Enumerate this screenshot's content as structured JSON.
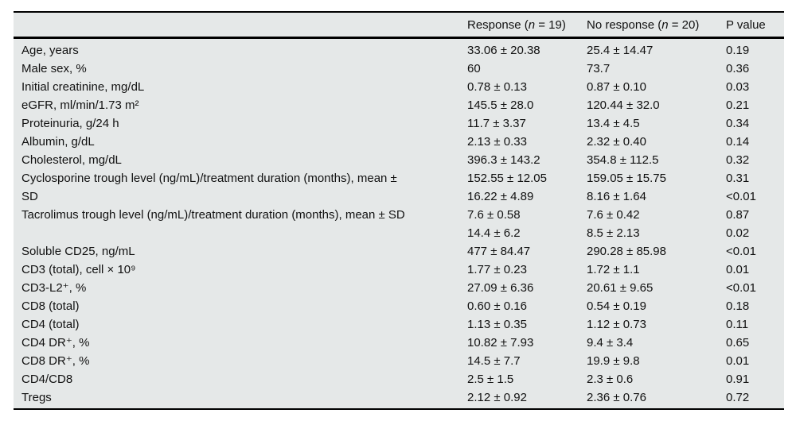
{
  "table": {
    "columns": {
      "row_header": "",
      "response": {
        "pre": "Response (",
        "n": "n",
        "post": " = 19)"
      },
      "no_response": {
        "pre": "No response (",
        "n": "n",
        "post": " = 20)"
      },
      "p_value": "P value"
    },
    "rows": [
      {
        "label": [
          "Age, years"
        ],
        "response": [
          "33.06 ± 20.38"
        ],
        "no_response": [
          "25.4 ± 14.47"
        ],
        "p": [
          "0.19"
        ]
      },
      {
        "label": [
          "Male sex, %"
        ],
        "response": [
          "60"
        ],
        "no_response": [
          "73.7"
        ],
        "p": [
          "0.36"
        ]
      },
      {
        "label": [
          "Initial creatinine, mg/dL"
        ],
        "response": [
          "0.78 ± 0.13"
        ],
        "no_response": [
          "0.87 ± 0.10"
        ],
        "p": [
          "0.03"
        ]
      },
      {
        "label": [
          "eGFR, ml/min/1.73 m²"
        ],
        "response": [
          "145.5 ± 28.0"
        ],
        "no_response": [
          "120.44 ± 32.0"
        ],
        "p": [
          "0.21"
        ]
      },
      {
        "label": [
          "Proteinuria, g/24 h"
        ],
        "response": [
          "11.7 ± 3.37"
        ],
        "no_response": [
          "13.4 ± 4.5"
        ],
        "p": [
          "0.34"
        ]
      },
      {
        "label": [
          "Albumin, g/dL"
        ],
        "response": [
          "2.13 ± 0.33"
        ],
        "no_response": [
          "2.32 ± 0.40"
        ],
        "p": [
          "0.14"
        ]
      },
      {
        "label": [
          "Cholesterol, mg/dL"
        ],
        "response": [
          "396.3 ± 143.2"
        ],
        "no_response": [
          "354.8 ± 112.5"
        ],
        "p": [
          "0.32"
        ]
      },
      {
        "label": [
          "Cyclosporine trough level (ng/mL)/treatment duration (months), mean ±",
          "SD"
        ],
        "response": [
          "152.55 ± 12.05",
          "16.22 ± 4.89"
        ],
        "no_response": [
          "159.05 ± 15.75",
          "8.16 ± 1.64"
        ],
        "p": [
          "0.31",
          "<0.01"
        ]
      },
      {
        "label": [
          "Tacrolimus trough level (ng/mL)/treatment duration (months), mean ± SD"
        ],
        "response": [
          "7.6 ± 0.58",
          "14.4 ± 6.2"
        ],
        "no_response": [
          "7.6 ± 0.42",
          "8.5 ± 2.13"
        ],
        "p": [
          "0.87",
          "0.02"
        ]
      },
      {
        "label": [
          "Soluble CD25, ng/mL"
        ],
        "response": [
          "477 ± 84.47"
        ],
        "no_response": [
          "290.28 ± 85.98"
        ],
        "p": [
          "<0.01"
        ]
      },
      {
        "label": [
          "CD3 (total), cell × 10⁹"
        ],
        "response": [
          "1.77 ± 0.23"
        ],
        "no_response": [
          "1.72 ± 1.1"
        ],
        "p": [
          "0.01"
        ]
      },
      {
        "label": [
          "CD3-L2⁺, %"
        ],
        "response": [
          "27.09 ± 6.36"
        ],
        "no_response": [
          "20.61 ± 9.65"
        ],
        "p": [
          "<0.01"
        ]
      },
      {
        "label": [
          "CD8 (total)"
        ],
        "response": [
          "0.60 ± 0.16"
        ],
        "no_response": [
          "0.54 ± 0.19"
        ],
        "p": [
          "0.18"
        ]
      },
      {
        "label": [
          "CD4 (total)"
        ],
        "response": [
          "1.13 ± 0.35"
        ],
        "no_response": [
          "1.12 ± 0.73"
        ],
        "p": [
          "0.11"
        ]
      },
      {
        "label": [
          "CD4 DR⁺, %"
        ],
        "response": [
          "10.82 ± 7.93"
        ],
        "no_response": [
          "9.4 ± 3.4"
        ],
        "p": [
          "0.65"
        ]
      },
      {
        "label": [
          "CD8 DR⁺, %"
        ],
        "response": [
          "14.5 ± 7.7"
        ],
        "no_response": [
          "19.9 ± 9.8"
        ],
        "p": [
          "0.01"
        ]
      },
      {
        "label": [
          "CD4/CD8"
        ],
        "response": [
          "2.5 ± 1.5"
        ],
        "no_response": [
          "2.3 ± 0.6"
        ],
        "p": [
          "0.91"
        ]
      },
      {
        "label": [
          "Tregs"
        ],
        "response": [
          "2.12 ± 0.92"
        ],
        "no_response": [
          "2.36 ± 0.76"
        ],
        "p": [
          "0.72"
        ]
      }
    ]
  },
  "colors": {
    "table_background": "#e5e8e8",
    "rule": "#000000",
    "text": "#111111",
    "page_background": "#ffffff"
  }
}
